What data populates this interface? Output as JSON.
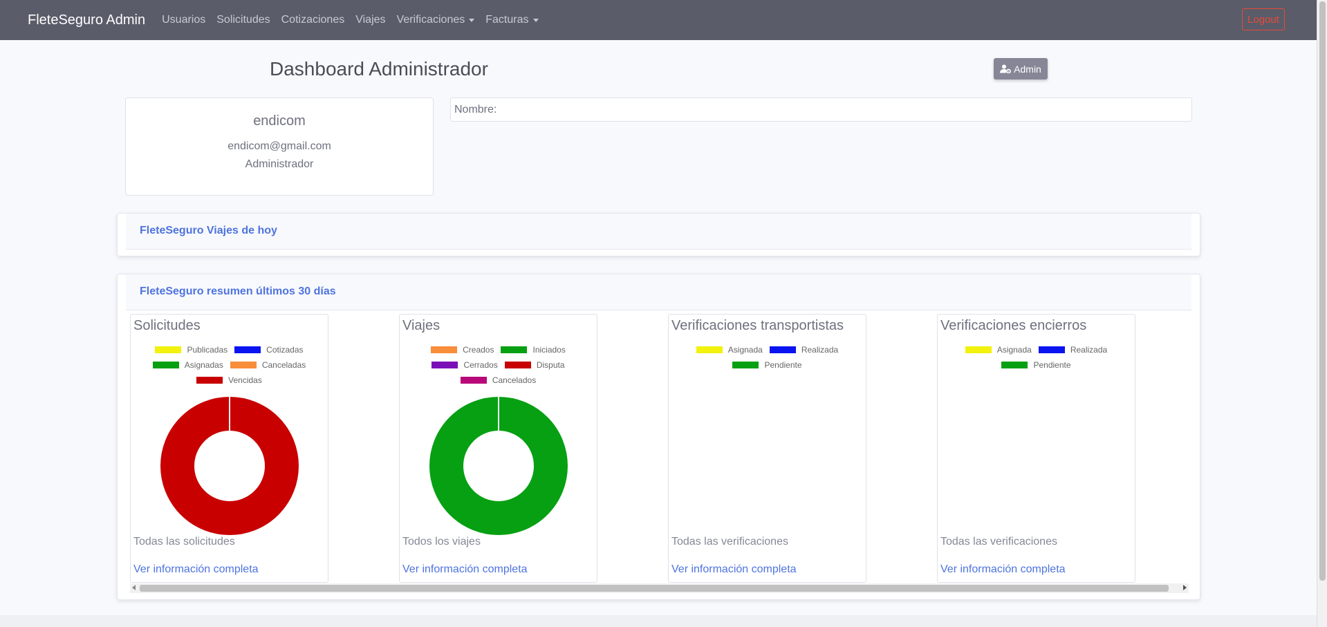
{
  "navbar": {
    "brand": "FleteSeguro Admin",
    "links": [
      "Usuarios",
      "Solicitudes",
      "Cotizaciones",
      "Viajes"
    ],
    "dropdowns": [
      "Verificaciones",
      "Facturas"
    ],
    "logout": "Logout"
  },
  "header": {
    "title": "Dashboard Administrador",
    "admin_button": "Admin"
  },
  "profile": {
    "name": "endicom",
    "email": "endicom@gmail.com",
    "role": "Administrador"
  },
  "nombre_label": "Nombre:",
  "viajes_hoy": {
    "title": "FleteSeguro Viajes de hoy"
  },
  "resumen": {
    "title": "FleteSeguro resumen últimos 30 días"
  },
  "colors": {
    "yellow": "#f2f20d",
    "blue": "#0a14f0",
    "green": "#06a012",
    "orange": "#f88d3a",
    "red": "#c80000",
    "purple": "#7a0fb8",
    "magenta": "#b8087a"
  },
  "chart_data": [
    {
      "type": "pie",
      "title": "Solicitudes",
      "legend": [
        {
          "label": "Publicadas",
          "color": "#f2f20d"
        },
        {
          "label": "Cotizadas",
          "color": "#0a14f0"
        },
        {
          "label": "Asignadas",
          "color": "#06a012"
        },
        {
          "label": "Canceladas",
          "color": "#f88d3a"
        },
        {
          "label": "Vencidas",
          "color": "#c80000"
        }
      ],
      "values": [
        0,
        0,
        0,
        0,
        1
      ],
      "footer": "Todas las solicitudes",
      "link": "Ver información completa"
    },
    {
      "type": "pie",
      "title": "Viajes",
      "legend": [
        {
          "label": "Creados",
          "color": "#f88d3a"
        },
        {
          "label": "Iniciados",
          "color": "#06a012"
        },
        {
          "label": "Cerrados",
          "color": "#7a0fb8"
        },
        {
          "label": "Disputa",
          "color": "#c80000"
        },
        {
          "label": "Cancelados",
          "color": "#b8087a"
        }
      ],
      "values": [
        0,
        1,
        0,
        0,
        0
      ],
      "footer": "Todos los viajes",
      "link": "Ver información completa"
    },
    {
      "type": "pie",
      "title": "Verificaciones transportistas",
      "legend": [
        {
          "label": "Asignada",
          "color": "#f2f20d"
        },
        {
          "label": "Realizada",
          "color": "#0a14f0"
        },
        {
          "label": "Pendiente",
          "color": "#06a012"
        }
      ],
      "values": [
        0,
        0,
        0
      ],
      "footer": "Todas las verificaciones",
      "link": "Ver información completa"
    },
    {
      "type": "pie",
      "title": "Verificaciones encierros",
      "legend": [
        {
          "label": "Asignada",
          "color": "#f2f20d"
        },
        {
          "label": "Realizada",
          "color": "#0a14f0"
        },
        {
          "label": "Pendiente",
          "color": "#06a012"
        }
      ],
      "values": [
        0,
        0,
        0
      ],
      "footer": "Todas las verificaciones",
      "link": "Ver información completa"
    }
  ]
}
